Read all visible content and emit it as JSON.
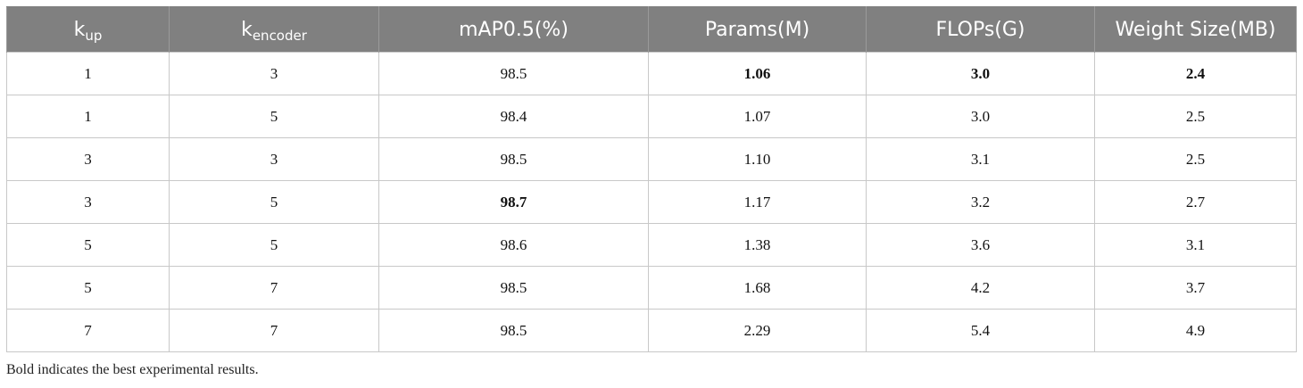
{
  "table": {
    "headers": [
      {
        "main": "k",
        "sub": "up"
      },
      {
        "main": "k",
        "sub": "encoder"
      },
      {
        "main": "mAP0.5(%)",
        "sub": ""
      },
      {
        "main": "Params(M)",
        "sub": ""
      },
      {
        "main": "FLOPs(G)",
        "sub": ""
      },
      {
        "main": "Weight Size(MB)",
        "sub": ""
      }
    ],
    "rows": [
      [
        "1",
        "3",
        "98.5",
        "1.06",
        "3.0",
        "2.4"
      ],
      [
        "1",
        "5",
        "98.4",
        "1.07",
        "3.0",
        "2.5"
      ],
      [
        "3",
        "3",
        "98.5",
        "1.10",
        "3.1",
        "2.5"
      ],
      [
        "3",
        "5",
        "98.7",
        "1.17",
        "3.2",
        "2.7"
      ],
      [
        "5",
        "5",
        "98.6",
        "1.38",
        "3.6",
        "3.1"
      ],
      [
        "5",
        "7",
        "98.5",
        "1.68",
        "4.2",
        "3.7"
      ],
      [
        "7",
        "7",
        "98.5",
        "2.29",
        "5.4",
        "4.9"
      ]
    ],
    "bold_cells": [
      [
        0,
        3
      ],
      [
        0,
        4
      ],
      [
        0,
        5
      ],
      [
        3,
        2
      ]
    ]
  },
  "footnote": "Bold indicates the best experimental results.",
  "colors": {
    "header_bg": "#808080",
    "header_text": "#ffffff",
    "grid": "#c8c8c8"
  }
}
